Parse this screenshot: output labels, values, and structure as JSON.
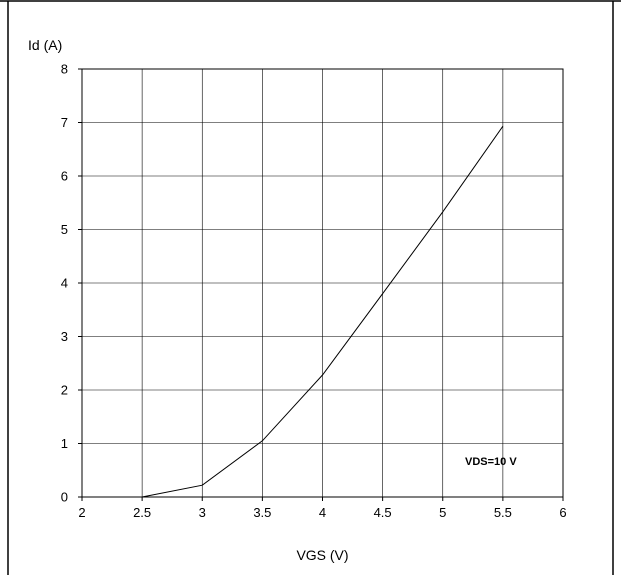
{
  "chart_data": {
    "type": "line",
    "xlabel": "VGS (V)",
    "ylabel": "Id (A)",
    "xlim": [
      2,
      6
    ],
    "ylim": [
      0,
      8
    ],
    "x_ticks": [
      "2",
      "2.5",
      "3",
      "3.5",
      "4",
      "4.5",
      "5",
      "5.5",
      "6"
    ],
    "y_ticks": [
      "0",
      "1",
      "2",
      "3",
      "4",
      "5",
      "6",
      "7",
      "8"
    ],
    "grid": true,
    "annotation": "VDS=10 V",
    "series": [
      {
        "x": [
          2.5,
          3.0,
          3.5,
          4.0,
          4.5,
          5.0,
          5.5
        ],
        "y": [
          0.0,
          0.22,
          1.05,
          2.28,
          3.8,
          5.33,
          6.93
        ]
      }
    ]
  }
}
